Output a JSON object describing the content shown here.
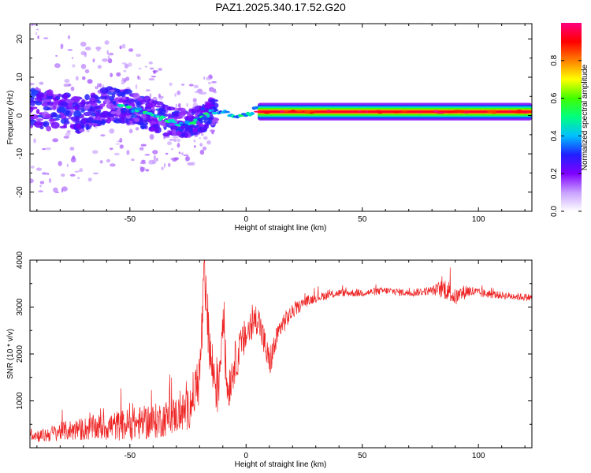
{
  "chart_data": [
    {
      "type": "heatmap",
      "title": "PAZ1.2025.340.17.52.G20",
      "xlabel": "Height of straight line (km)",
      "ylabel": "Frequency (Hz)",
      "xlim": [
        -93,
        123
      ],
      "ylim": [
        -25,
        24
      ],
      "xticks": [
        -50,
        0,
        50,
        100
      ],
      "yticks": [
        -20,
        -10,
        0,
        10,
        20
      ],
      "xtick_labels": [
        "-50",
        "0",
        "50",
        "100"
      ],
      "ytick_labels": [
        "-20",
        "-10",
        "0",
        "10",
        "20"
      ],
      "ridge": {
        "description": "Dominant spectral ridge frequency (Hz) vs height (km)",
        "x": [
          -92,
          -80,
          -70,
          -60,
          -50,
          -40,
          -35,
          -30,
          -25,
          -20,
          -15,
          -10,
          -5,
          0,
          5,
          10,
          20,
          40,
          60,
          80,
          100,
          123
        ],
        "freq": [
          2,
          1,
          0,
          3,
          2,
          0,
          -1,
          -2,
          -2,
          -1,
          1,
          1,
          0,
          0,
          2,
          1,
          1,
          1,
          1,
          1,
          1,
          1
        ]
      },
      "colorbar": {
        "label": "Normalized spectral amplitude",
        "range": [
          0.0,
          1.0
        ],
        "ticks": [
          0.0,
          0.2,
          0.4,
          0.6,
          0.8
        ],
        "tick_labels": [
          "0.0",
          "0.2",
          "0.4",
          "0.6",
          "0.8"
        ],
        "colormap": [
          "#ffffff",
          "#c8a0ff",
          "#8000ff",
          "#2020ff",
          "#00c0ff",
          "#00ff80",
          "#40ff00",
          "#ffff00",
          "#ff8000",
          "#ff0000",
          "#ff0080"
        ]
      }
    },
    {
      "type": "line",
      "xlabel": "Height of straight line (km)",
      "ylabel": "SNR (10 * v/v)",
      "xlim": [
        -93,
        123
      ],
      "ylim": [
        0,
        4000
      ],
      "xticks": [
        -50,
        0,
        50,
        100
      ],
      "yticks": [
        1000,
        2000,
        3000,
        4000
      ],
      "xtick_labels": [
        "-50",
        "0",
        "50",
        "100"
      ],
      "ytick_labels": [
        "1000",
        "2000",
        "3000",
        "4000"
      ],
      "series": [
        {
          "name": "SNR",
          "color": "#ee2222",
          "x": [
            -93,
            -88,
            -80,
            -70,
            -60,
            -50,
            -40,
            -30,
            -25,
            -20,
            -18,
            -15,
            -12,
            -10,
            -8,
            -5,
            0,
            5,
            10,
            15,
            20,
            25,
            30,
            40,
            50,
            60,
            70,
            80,
            86,
            90,
            95,
            100,
            110,
            123
          ],
          "y": [
            300,
            250,
            350,
            400,
            450,
            500,
            550,
            700,
            800,
            1500,
            3500,
            1800,
            1200,
            2800,
            1200,
            1800,
            2400,
            2800,
            1800,
            2600,
            2900,
            3100,
            3200,
            3300,
            3300,
            3350,
            3300,
            3350,
            3400,
            3200,
            3350,
            3300,
            3250,
            3200
          ],
          "noise": [
            120,
            150,
            200,
            250,
            300,
            350,
            380,
            400,
            450,
            600,
            700,
            650,
            600,
            550,
            500,
            450,
            400,
            350,
            350,
            250,
            150,
            120,
            100,
            80,
            80,
            80,
            80,
            90,
            250,
            180,
            150,
            100,
            80,
            80
          ]
        }
      ]
    }
  ]
}
